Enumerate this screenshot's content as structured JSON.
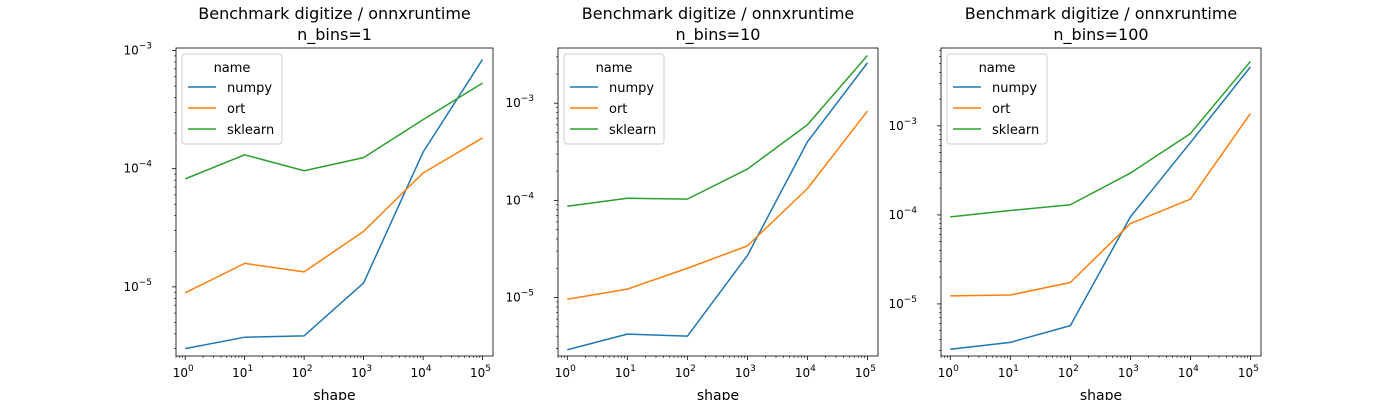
{
  "chart_data": [
    {
      "type": "line",
      "title": "Benchmark digitize / onnxruntime",
      "subtitle": "n_bins=1",
      "xlabel": "shape",
      "ylabel": "",
      "xscale": "log",
      "yscale": "log",
      "xlim": [
        0.7,
        150000
      ],
      "ylim": [
        2.6e-06,
        0.00105
      ],
      "x": [
        1,
        10,
        100,
        1000,
        10000,
        100000
      ],
      "xticks": [
        1,
        10,
        100,
        1000,
        10000,
        100000
      ],
      "xtick_labels": [
        [
          "10",
          "0"
        ],
        [
          "10",
          "1"
        ],
        [
          "10",
          "2"
        ],
        [
          "10",
          "3"
        ],
        [
          "10",
          "4"
        ],
        [
          "10",
          "5"
        ]
      ],
      "yticks": [
        1e-05,
        0.0001,
        0.001
      ],
      "ytick_labels": [
        [
          "10",
          "−5"
        ],
        [
          "10",
          "−4"
        ],
        [
          "10",
          "−3"
        ]
      ],
      "grid": false,
      "legend_title": "name",
      "legend_position": "upper-left",
      "series": [
        {
          "name": "numpy",
          "color": "#1f77b4",
          "values": [
            3e-06,
            3.75e-06,
            3.85e-06,
            1.08e-05,
            0.000138,
            0.00084
          ]
        },
        {
          "name": "ort",
          "color": "#ff7f0e",
          "values": [
            8.9e-06,
            1.58e-05,
            1.34e-05,
            2.95e-05,
            9.2e-05,
            0.000182
          ]
        },
        {
          "name": "sklearn",
          "color": "#2ca02c",
          "values": [
            8.2e-05,
            0.000131,
            9.6e-05,
            0.000124,
            0.00026,
            0.00053
          ]
        }
      ]
    },
    {
      "type": "line",
      "title": "Benchmark digitize / onnxruntime",
      "subtitle": "n_bins=10",
      "xlabel": "shape",
      "ylabel": "",
      "xscale": "log",
      "yscale": "log",
      "xlim": [
        0.7,
        150000
      ],
      "ylim": [
        2.5e-06,
        0.0037
      ],
      "x": [
        1,
        10,
        100,
        1000,
        10000,
        100000
      ],
      "xticks": [
        1,
        10,
        100,
        1000,
        10000,
        100000
      ],
      "xtick_labels": [
        [
          "10",
          "0"
        ],
        [
          "10",
          "1"
        ],
        [
          "10",
          "2"
        ],
        [
          "10",
          "3"
        ],
        [
          "10",
          "4"
        ],
        [
          "10",
          "5"
        ]
      ],
      "yticks": [
        1e-05,
        0.0001,
        0.001
      ],
      "ytick_labels": [
        [
          "10",
          "−5"
        ],
        [
          "10",
          "−4"
        ],
        [
          "10",
          "−3"
        ]
      ],
      "grid": false,
      "legend_title": "name",
      "legend_position": "upper-left",
      "series": [
        {
          "name": "numpy",
          "color": "#1f77b4",
          "values": [
            2.9e-06,
            4.2e-06,
            4e-06,
            2.7e-05,
            0.0004,
            0.0026
          ]
        },
        {
          "name": "ort",
          "color": "#ff7f0e",
          "values": [
            9.6e-06,
            1.22e-05,
            2e-05,
            3.4e-05,
            0.000132,
            0.00083
          ]
        },
        {
          "name": "sklearn",
          "color": "#2ca02c",
          "values": [
            8.7e-05,
            0.000105,
            0.000103,
            0.00021,
            0.0006,
            0.0031
          ]
        }
      ]
    },
    {
      "type": "line",
      "title": "Benchmark digitize / onnxruntime",
      "subtitle": "n_bins=100",
      "xlabel": "shape",
      "ylabel": "",
      "xscale": "log",
      "yscale": "log",
      "xlim": [
        0.7,
        150000
      ],
      "ylim": [
        2.6e-06,
        0.0075
      ],
      "x": [
        1,
        10,
        100,
        1000,
        10000,
        100000
      ],
      "xticks": [
        1,
        10,
        100,
        1000,
        10000,
        100000
      ],
      "xtick_labels": [
        [
          "10",
          "0"
        ],
        [
          "10",
          "1"
        ],
        [
          "10",
          "2"
        ],
        [
          "10",
          "3"
        ],
        [
          "10",
          "4"
        ],
        [
          "10",
          "5"
        ]
      ],
      "yticks": [
        1e-05,
        0.0001,
        0.001
      ],
      "ytick_labels": [
        [
          "10",
          "−5"
        ],
        [
          "10",
          "−4"
        ],
        [
          "10",
          "−3"
        ]
      ],
      "grid": false,
      "legend_title": "name",
      "legend_position": "upper-left",
      "series": [
        {
          "name": "numpy",
          "color": "#1f77b4",
          "values": [
            3.1e-06,
            3.7e-06,
            5.7e-06,
            9.5e-05,
            0.00065,
            0.0046
          ]
        },
        {
          "name": "ort",
          "color": "#ff7f0e",
          "values": [
            1.23e-05,
            1.26e-05,
            1.74e-05,
            8e-05,
            0.00015,
            0.00138
          ]
        },
        {
          "name": "sklearn",
          "color": "#2ca02c",
          "values": [
            9.5e-05,
            0.000112,
            0.00013,
            0.000295,
            0.00082,
            0.0053
          ]
        }
      ]
    }
  ]
}
